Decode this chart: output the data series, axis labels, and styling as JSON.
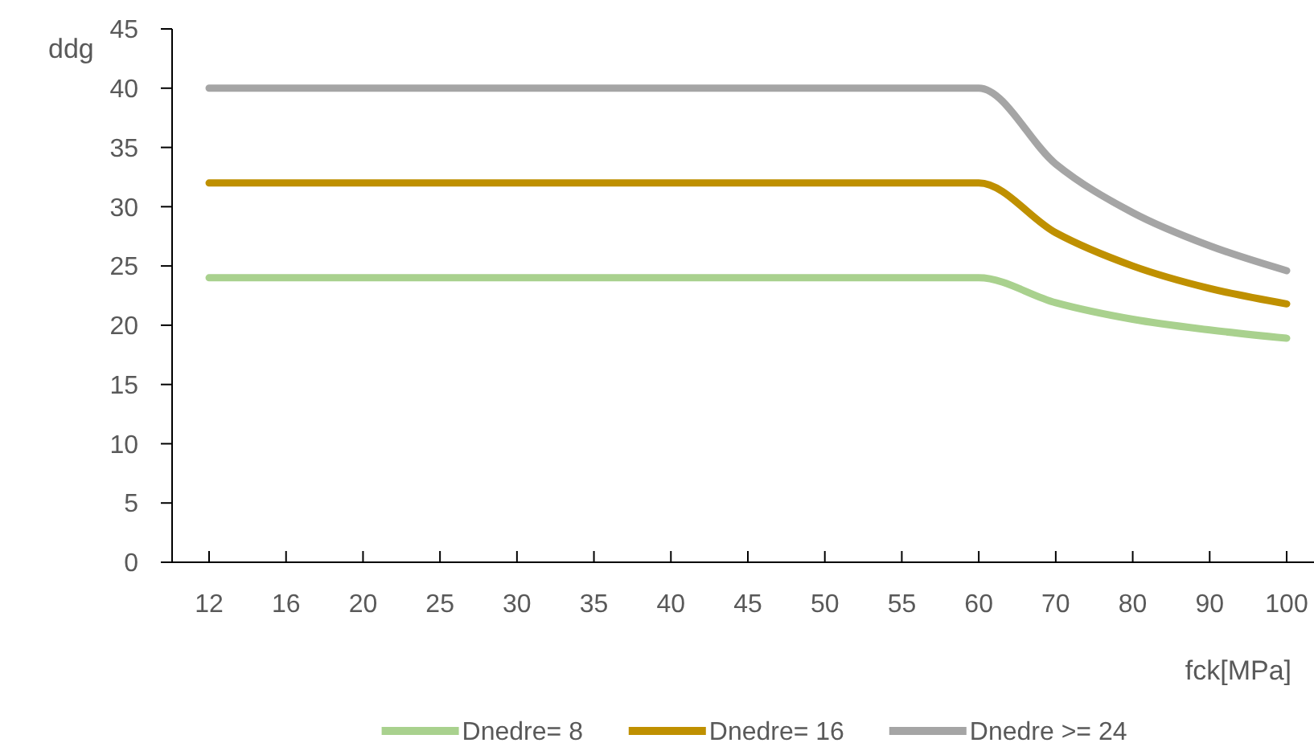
{
  "chart_data": {
    "type": "line",
    "xlabel": "fck[MPa]",
    "ylabel": "ddg",
    "categories": [
      "12",
      "16",
      "20",
      "25",
      "30",
      "35",
      "40",
      "45",
      "50",
      "55",
      "60",
      "70",
      "80",
      "90",
      "100"
    ],
    "series": [
      {
        "name": "Dnedre= 8",
        "color": "#a9d18e",
        "values": [
          24,
          24,
          24,
          24,
          24,
          24,
          24,
          24,
          24,
          24,
          24,
          21.9,
          20.5,
          19.6,
          18.9
        ]
      },
      {
        "name": "Dnedre= 16",
        "color": "#bf9000",
        "values": [
          32,
          32,
          32,
          32,
          32,
          32,
          32,
          32,
          32,
          32,
          32,
          27.8,
          25,
          23.1,
          21.8
        ]
      },
      {
        "name": "Dnedre >= 24",
        "color": "#a5a5a5",
        "values": [
          40,
          40,
          40,
          40,
          40,
          40,
          40,
          40,
          40,
          40,
          40,
          33.6,
          29.5,
          26.7,
          24.6
        ]
      }
    ],
    "ylim": [
      0,
      45
    ],
    "yticks": [
      0,
      5,
      10,
      15,
      20,
      25,
      30,
      35,
      40,
      45
    ],
    "grid": false,
    "legend": "bottom",
    "marker": "none",
    "line_style": "solid"
  }
}
